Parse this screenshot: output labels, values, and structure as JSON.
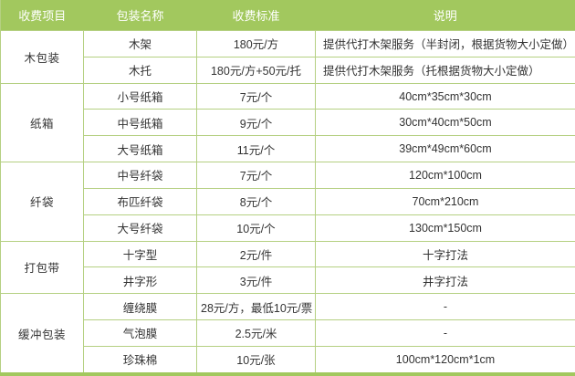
{
  "table": {
    "headers": [
      "收费项目",
      "包装名称",
      "收费标准",
      "说明"
    ],
    "sections": [
      {
        "item": "木包装",
        "rows": [
          [
            "木架",
            "180元/方",
            "提供代打木架服务（半封闭，根据货物大小定做）"
          ],
          [
            "木托",
            "180元/方+50元/托",
            "提供代打木架服务（托根据货物大小定做）"
          ]
        ]
      },
      {
        "item": "纸箱",
        "rows": [
          [
            "小号纸箱",
            "7元/个",
            "40cm*35cm*30cm"
          ],
          [
            "中号纸箱",
            "9元/个",
            "30cm*40cm*50cm"
          ],
          [
            "大号纸箱",
            "11元/个",
            "39cm*49cm*60cm"
          ]
        ]
      },
      {
        "item": "纤袋",
        "rows": [
          [
            "中号纤袋",
            "7元/个",
            "120cm*100cm"
          ],
          [
            "布匹纤袋",
            "8元/个",
            "70cm*210cm"
          ],
          [
            "大号纤袋",
            "10元/个",
            "130cm*150cm"
          ]
        ]
      },
      {
        "item": "打包带",
        "rows": [
          [
            "十字型",
            "2元/件",
            "十字打法"
          ],
          [
            "井字形",
            "3元/件",
            "井字打法"
          ]
        ]
      },
      {
        "item": "缓冲包装",
        "rows": [
          [
            "缠绕膜",
            "28元/方，最低10元/票",
            "-"
          ],
          [
            "气泡膜",
            "2.5元/米",
            "-"
          ],
          [
            "珍珠棉",
            "10元/张",
            "100cm*120cm*1cm"
          ]
        ]
      }
    ],
    "colors": {
      "header_bg": "#a2c85e",
      "border": "#b5d082",
      "text": "#333333",
      "header_text": "#ffffff"
    }
  }
}
